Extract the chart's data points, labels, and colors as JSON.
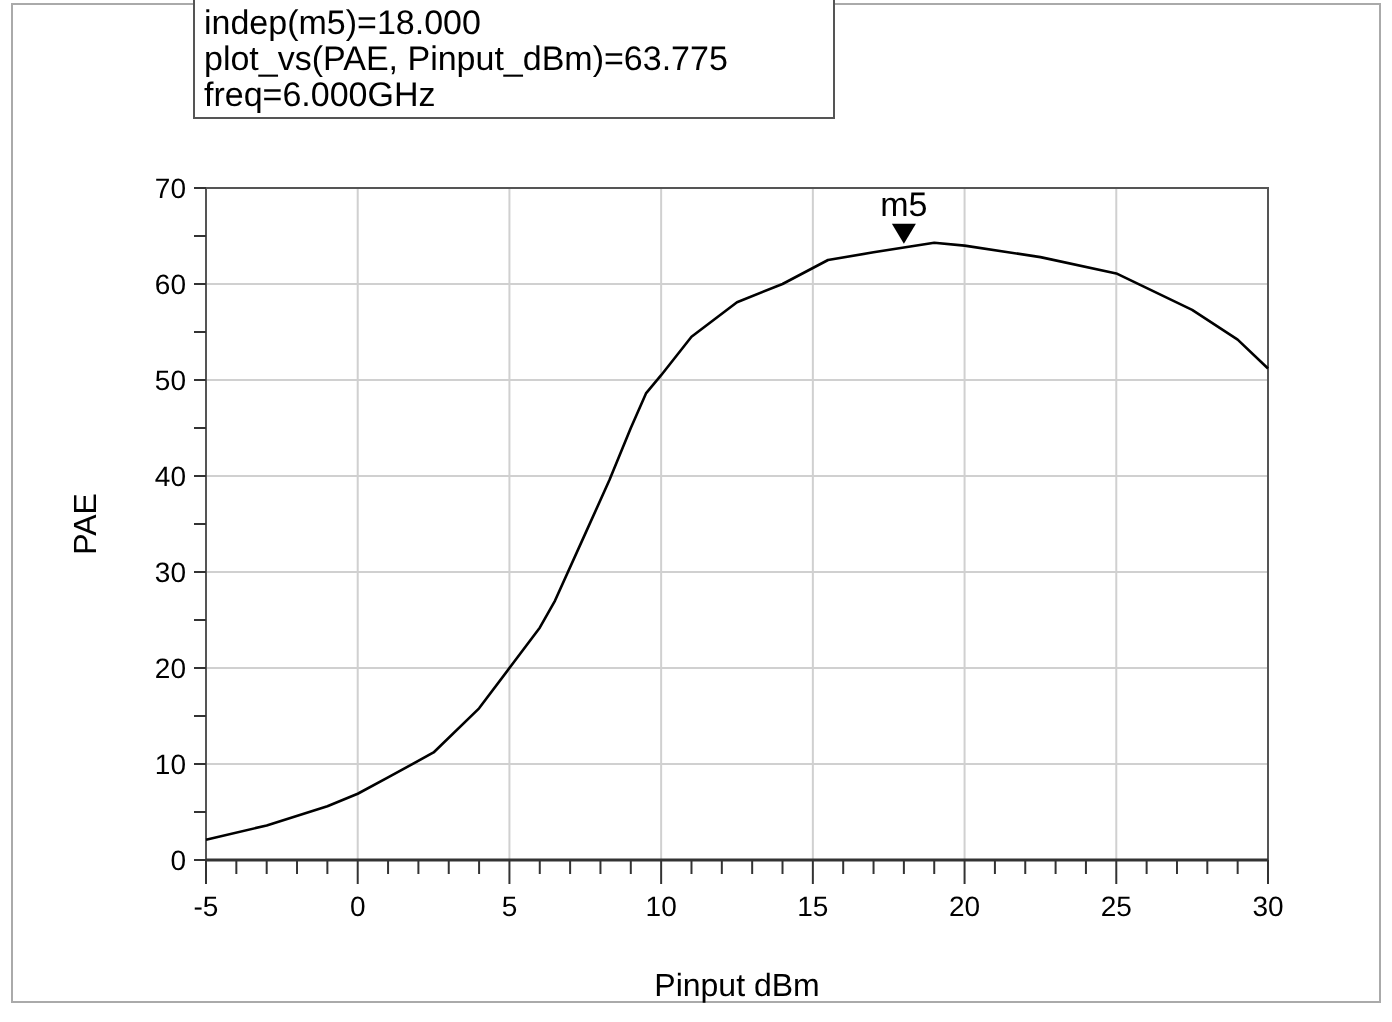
{
  "chart_data": {
    "type": "line",
    "xlabel": "Pinput dBm",
    "ylabel": "PAE",
    "annotations": [
      "indep(m5)=18.000",
      "plot_vs(PAE, Pinput_dBm)=63.775",
      "freq=6.000GHz",
      {
        "text": "m5",
        "x": 18,
        "y": 63.775
      }
    ],
    "x": [
      -5,
      -3,
      -1,
      0,
      1,
      2.5,
      4,
      5,
      6,
      6.5,
      7.5,
      8.3,
      9,
      9.5,
      10,
      11,
      12.5,
      14,
      15.5,
      17,
      19,
      20,
      22.5,
      25,
      27.5,
      29,
      30
    ],
    "series": [
      {
        "color": "#000000",
        "values": [
          2.1,
          3.6,
          5.6,
          6.9,
          8.6,
          11.2,
          15.8,
          20,
          24.2,
          27,
          34,
          39.6,
          45,
          48.6,
          50.5,
          54.5,
          58.1,
          60,
          62.5,
          63.3,
          64.3,
          64.0,
          62.8,
          61.1,
          57.3,
          54.2,
          51.2
        ]
      }
    ],
    "xlim": [
      -5,
      30
    ],
    "ylim": [
      0,
      70
    ],
    "xticks": [
      -5,
      {
        "value": -4,
        "label": null
      },
      {
        "value": -3,
        "label": null
      },
      {
        "value": -2,
        "label": null
      },
      {
        "value": -1,
        "label": null
      },
      0,
      {
        "value": 1,
        "label": null
      },
      {
        "value": 2,
        "label": null
      },
      {
        "value": 3,
        "label": null
      },
      {
        "value": 4,
        "label": null
      },
      5,
      {
        "value": 6,
        "label": null
      },
      {
        "value": 7,
        "label": null
      },
      {
        "value": 8,
        "label": null
      },
      {
        "value": 9,
        "label": null
      },
      10,
      {
        "value": 11,
        "label": null
      },
      {
        "value": 12,
        "label": null
      },
      {
        "value": 13,
        "label": null
      },
      {
        "value": 14,
        "label": null
      },
      15,
      {
        "value": 16,
        "label": null
      },
      {
        "value": 17,
        "label": null
      },
      {
        "value": 18,
        "label": null
      },
      {
        "value": 19,
        "label": null
      },
      20,
      {
        "value": 21,
        "label": null
      },
      {
        "value": 22,
        "label": null
      },
      {
        "value": 23,
        "label": null
      },
      {
        "value": 24,
        "label": null
      },
      25,
      {
        "value": 26,
        "label": null
      },
      {
        "value": 27,
        "label": null
      },
      {
        "value": 28,
        "label": null
      },
      {
        "value": 29,
        "label": null
      },
      30
    ],
    "yticks": [
      0,
      {
        "value": 5,
        "label": null
      },
      10,
      {
        "value": 15,
        "label": null
      },
      20,
      {
        "value": 25,
        "label": null
      },
      30,
      {
        "value": 35,
        "label": null
      },
      40,
      {
        "value": 45,
        "label": null
      },
      50,
      {
        "value": 55,
        "label": null
      },
      60,
      {
        "value": 65,
        "label": null
      },
      70
    ],
    "grid": true,
    "marker": "none",
    "line_style": "solid"
  }
}
